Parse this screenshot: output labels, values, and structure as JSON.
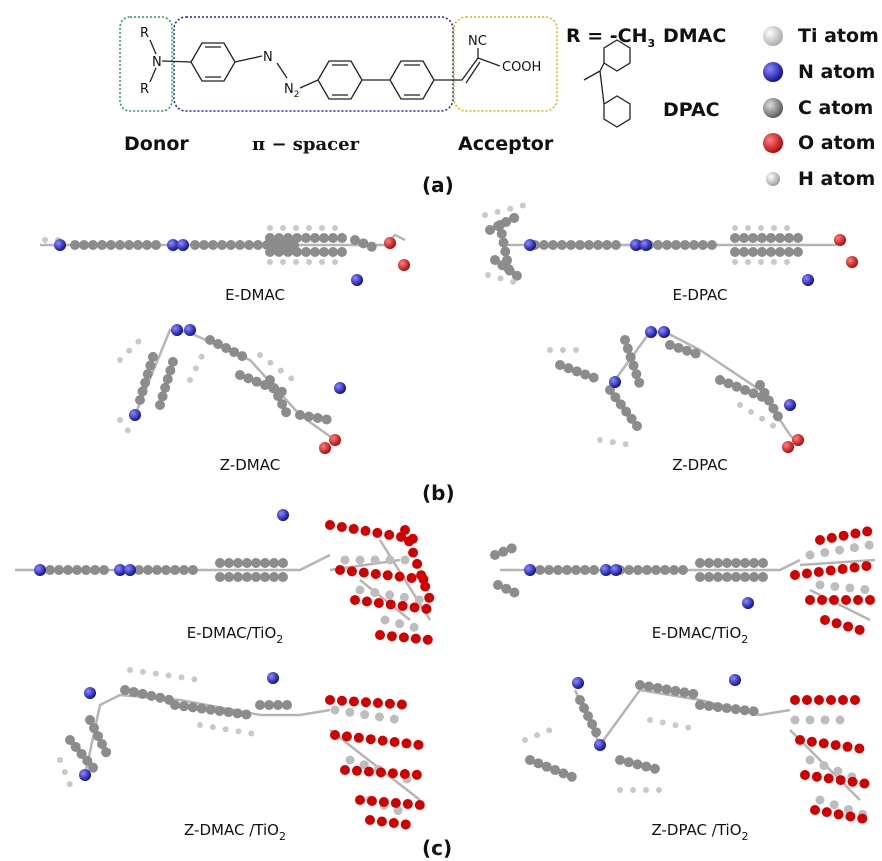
{
  "panel_a": {
    "structure": {
      "r_top": "R",
      "amine_n": "N",
      "r_bottom": "R",
      "azo_n1": "N",
      "azo_n2": "N",
      "azo_n2_sub": "2",
      "cyano": "NC",
      "acid": "COOH"
    },
    "group_labels": {
      "donor": "Donor",
      "spacer": "π − spacer",
      "acceptor": "Acceptor"
    },
    "substituents": {
      "r_definition": "R = -CH",
      "r_definition_sub": "3",
      "dmac": "DMAC",
      "dpac": "DPAC"
    },
    "legend": [
      "Ti atom",
      "N atom",
      "C atom",
      "O atom",
      "H atom"
    ],
    "label": "(a)"
  },
  "panel_b": {
    "molecules": [
      "E-DMAC",
      "E-DPAC",
      "Z-DMAC",
      "Z-DPAC"
    ],
    "label": "(b)"
  },
  "panel_c": {
    "molecules": [
      {
        "name": "E-DMAC/TiO",
        "sub": "2"
      },
      {
        "name": "E-DMAC/TiO",
        "sub": "2"
      },
      {
        "name": "Z-DMAC /TiO",
        "sub": "2"
      },
      {
        "name": "Z-DPAC /TiO",
        "sub": "2"
      }
    ],
    "label": "(c)"
  }
}
